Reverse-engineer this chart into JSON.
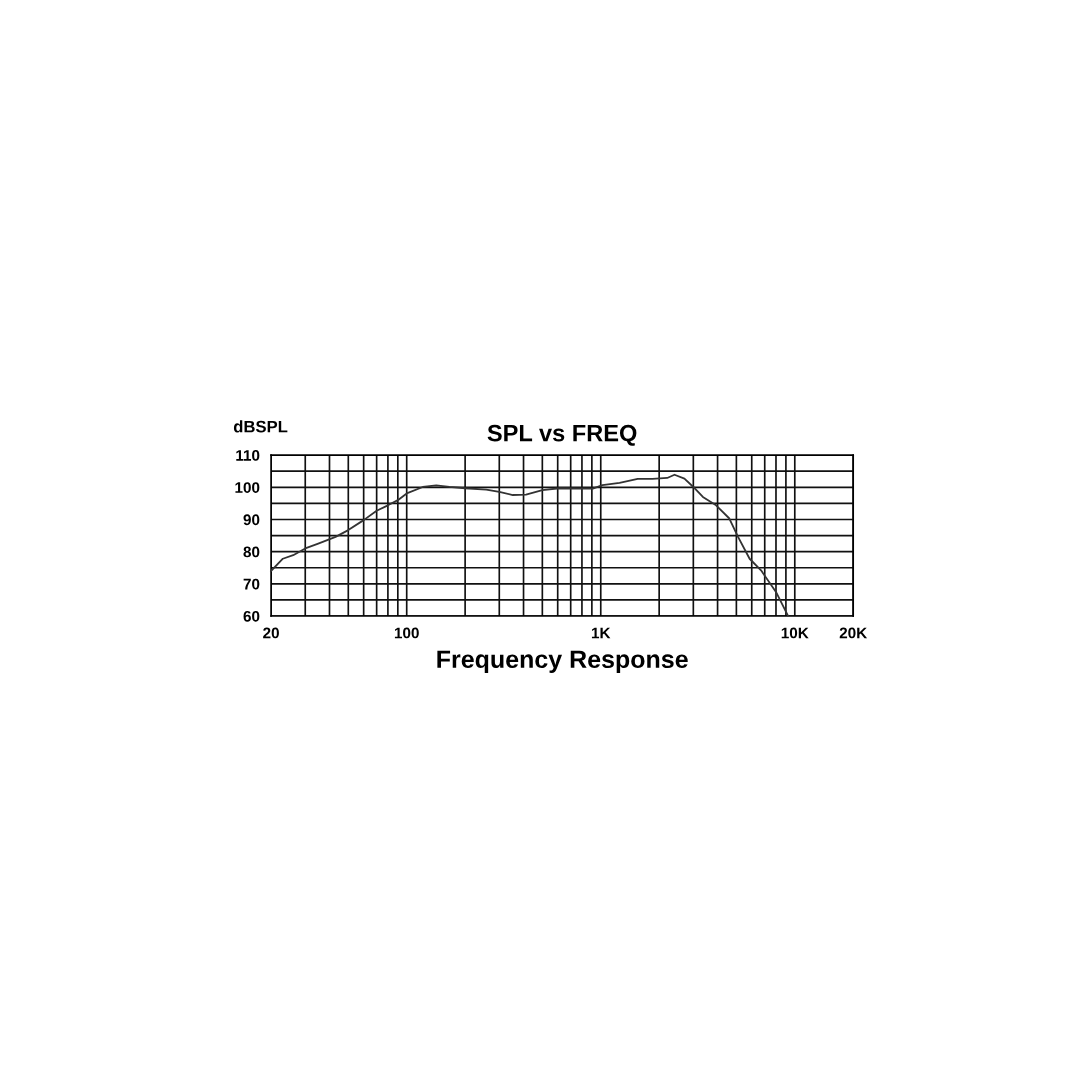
{
  "chart_data": {
    "type": "line",
    "title": "SPL vs FREQ",
    "ylabel": "dBSPL",
    "xlabel": "Frequency Response",
    "log": "x",
    "grid": true,
    "marker": "none",
    "line_style": "solid",
    "xlim": [
      20,
      20000
    ],
    "ylim": [
      60,
      110
    ],
    "xticks": [
      20,
      {
        "value": 30,
        "label": null
      },
      {
        "value": 40,
        "label": null
      },
      {
        "value": 50,
        "label": null
      },
      {
        "value": 60,
        "label": null
      },
      {
        "value": 70,
        "label": null
      },
      {
        "value": 80,
        "label": null
      },
      {
        "value": 90,
        "label": null
      },
      100,
      {
        "value": 200,
        "label": null
      },
      {
        "value": 300,
        "label": null
      },
      {
        "value": 400,
        "label": null
      },
      {
        "value": 500,
        "label": null
      },
      {
        "value": 600,
        "label": null
      },
      {
        "value": 700,
        "label": null
      },
      {
        "value": 800,
        "label": null
      },
      {
        "value": 900,
        "label": null
      },
      {
        "value": 1000,
        "label": "1K"
      },
      {
        "value": 2000,
        "label": null
      },
      {
        "value": 3000,
        "label": null
      },
      {
        "value": 4000,
        "label": null
      },
      {
        "value": 5000,
        "label": null
      },
      {
        "value": 6000,
        "label": null
      },
      {
        "value": 7000,
        "label": null
      },
      {
        "value": 8000,
        "label": null
      },
      {
        "value": 9000,
        "label": null
      },
      {
        "value": 10000,
        "label": "10K"
      },
      {
        "value": 20000,
        "label": "20K"
      }
    ],
    "yticks": [
      60,
      {
        "value": 65,
        "label": null
      },
      70,
      {
        "value": 75,
        "label": null
      },
      80,
      {
        "value": 85,
        "label": null
      },
      90,
      {
        "value": 95,
        "label": null
      },
      100,
      {
        "value": 105,
        "label": null
      },
      110
    ],
    "series": [
      {
        "color": "#333333",
        "x": [
          20,
          23,
          26,
          30,
          35,
          43,
          50,
          60,
          70,
          80,
          90,
          100,
          121,
          142,
          166,
          200,
          257,
          300,
          352,
          412,
          500,
          612,
          910,
          1020,
          1250,
          1550,
          1850,
          2200,
          2400,
          2700,
          3000,
          3360,
          3930,
          4600,
          5100,
          5850,
          6700,
          8000,
          9200
        ],
        "values": [
          74.0,
          77.8,
          78.9,
          81.0,
          82.5,
          84.6,
          86.7,
          89.8,
          92.7,
          94.4,
          96.0,
          98.1,
          100.1,
          100.6,
          100.1,
          99.7,
          99.3,
          98.6,
          97.6,
          97.7,
          99.1,
          99.7,
          99.6,
          100.7,
          101.4,
          102.6,
          102.6,
          102.9,
          103.9,
          102.7,
          100.1,
          97.0,
          94.4,
          90.3,
          84.6,
          77.8,
          74.2,
          67.5,
          60.2
        ]
      }
    ]
  }
}
